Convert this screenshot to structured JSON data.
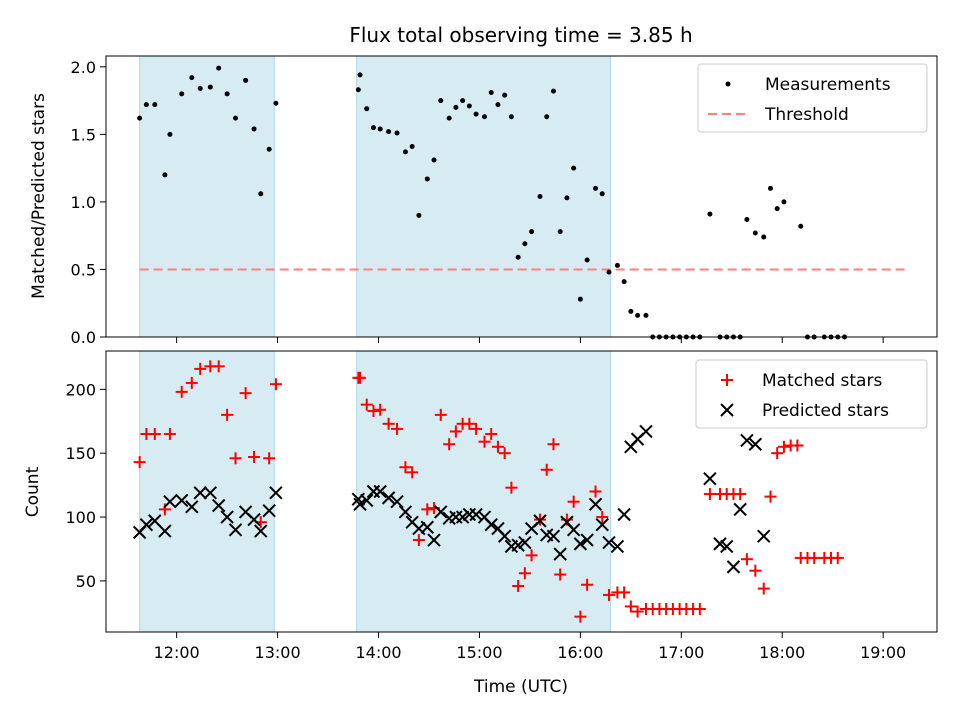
{
  "title": "Flux total observing time = 3.85 h",
  "xlabel": "Time (UTC)",
  "x_ticks": [
    "12:00",
    "13:00",
    "14:00",
    "15:00",
    "16:00",
    "17:00",
    "18:00",
    "19:00"
  ],
  "colors": {
    "measure": "#000000",
    "threshold": "#ff7f7f",
    "matched": "#ff0000",
    "predicted": "#000000",
    "span": "#add8e6"
  },
  "chart_data": [
    {
      "type": "scatter",
      "ylabel": "Matched/Predicted stars",
      "xlim": [
        "11:18",
        "19:32"
      ],
      "ylim": [
        0,
        2.08
      ],
      "y_ticks": [
        "0.0",
        "0.5",
        "1.0",
        "1.5",
        "2.0"
      ],
      "legend": {
        "position": "top-right",
        "entries": [
          "Measurements",
          "Threshold"
        ]
      },
      "shaded_intervals": [
        [
          "11:38",
          "12:58"
        ],
        [
          "13:47",
          "16:18"
        ]
      ],
      "threshold": {
        "name": "Threshold",
        "y": 0.5,
        "x_range": [
          "11:38",
          "19:13"
        ]
      },
      "series": [
        {
          "name": "Measurements",
          "marker": "dot",
          "points": [
            [
              "11:38",
              1.62
            ],
            [
              "11:42",
              1.72
            ],
            [
              "11:47",
              1.72
            ],
            [
              "11:53",
              1.2
            ],
            [
              "11:56",
              1.5
            ],
            [
              "12:03",
              1.8
            ],
            [
              "12:09",
              1.92
            ],
            [
              "12:14",
              1.84
            ],
            [
              "12:20",
              1.85
            ],
            [
              "12:25",
              1.99
            ],
            [
              "12:30",
              1.8
            ],
            [
              "12:35",
              1.62
            ],
            [
              "12:41",
              1.9
            ],
            [
              "12:46",
              1.54
            ],
            [
              "12:50",
              1.06
            ],
            [
              "12:55",
              1.39
            ],
            [
              "12:59",
              1.73
            ],
            [
              "13:48",
              1.83
            ],
            [
              "13:49",
              1.94
            ],
            [
              "13:53",
              1.69
            ],
            [
              "13:57",
              1.55
            ],
            [
              "14:01",
              1.54
            ],
            [
              "14:06",
              1.52
            ],
            [
              "14:11",
              1.51
            ],
            [
              "14:16",
              1.37
            ],
            [
              "14:20",
              1.41
            ],
            [
              "14:24",
              0.9
            ],
            [
              "14:29",
              1.17
            ],
            [
              "14:33",
              1.31
            ],
            [
              "14:37",
              1.75
            ],
            [
              "14:42",
              1.62
            ],
            [
              "14:46",
              1.7
            ],
            [
              "14:50",
              1.75
            ],
            [
              "14:54",
              1.71
            ],
            [
              "14:58",
              1.65
            ],
            [
              "15:03",
              1.63
            ],
            [
              "15:07",
              1.81
            ],
            [
              "15:11",
              1.72
            ],
            [
              "15:15",
              1.79
            ],
            [
              "15:19",
              1.63
            ],
            [
              "15:23",
              0.59
            ],
            [
              "15:27",
              0.69
            ],
            [
              "15:31",
              0.78
            ],
            [
              "15:36",
              1.04
            ],
            [
              "15:40",
              1.63
            ],
            [
              "15:44",
              1.82
            ],
            [
              "15:48",
              0.78
            ],
            [
              "15:52",
              1.03
            ],
            [
              "15:56",
              1.25
            ],
            [
              "16:00",
              0.28
            ],
            [
              "16:04",
              0.57
            ],
            [
              "16:09",
              1.1
            ],
            [
              "16:13",
              1.06
            ],
            [
              "16:17",
              0.48
            ],
            [
              "16:22",
              0.53
            ],
            [
              "16:26",
              0.41
            ],
            [
              "16:30",
              0.19
            ],
            [
              "16:34",
              0.16
            ],
            [
              "16:39",
              0.16
            ],
            [
              "16:43",
              0.0
            ],
            [
              "16:47",
              0.0
            ],
            [
              "16:51",
              0.0
            ],
            [
              "16:55",
              0.0
            ],
            [
              "16:59",
              0.0
            ],
            [
              "17:03",
              0.0
            ],
            [
              "17:07",
              0.0
            ],
            [
              "17:11",
              0.0
            ],
            [
              "17:17",
              0.91
            ],
            [
              "17:23",
              0.0
            ],
            [
              "17:27",
              0.0
            ],
            [
              "17:31",
              0.0
            ],
            [
              "17:35",
              0.0
            ],
            [
              "17:39",
              0.87
            ],
            [
              "17:44",
              0.77
            ],
            [
              "17:49",
              0.74
            ],
            [
              "17:53",
              1.1
            ],
            [
              "17:57",
              0.95
            ],
            [
              "18:01",
              1.0
            ],
            [
              "18:11",
              0.82
            ],
            [
              "18:15",
              0.0
            ],
            [
              "18:19",
              0.0
            ],
            [
              "18:25",
              0.0
            ],
            [
              "18:29",
              0.0
            ],
            [
              "18:33",
              0.0
            ],
            [
              "18:37",
              0.0
            ]
          ]
        }
      ]
    },
    {
      "type": "scatter",
      "ylabel": "Count",
      "xlim": [
        "11:18",
        "19:32"
      ],
      "ylim": [
        10,
        230
      ],
      "y_ticks": [
        "50",
        "100",
        "150",
        "200"
      ],
      "legend": {
        "position": "top-right",
        "entries": [
          "Matched stars",
          "Predicted stars"
        ]
      },
      "shaded_intervals": [
        [
          "11:38",
          "12:58"
        ],
        [
          "13:47",
          "16:18"
        ]
      ],
      "series": [
        {
          "name": "Matched stars",
          "marker": "plus",
          "points": [
            [
              "11:38",
              143
            ],
            [
              "11:42",
              165
            ],
            [
              "11:47",
              165
            ],
            [
              "11:53",
              106
            ],
            [
              "11:56",
              165
            ],
            [
              "12:03",
              198
            ],
            [
              "12:09",
              205
            ],
            [
              "12:14",
              216
            ],
            [
              "12:20",
              218
            ],
            [
              "12:25",
              218
            ],
            [
              "12:30",
              180
            ],
            [
              "12:35",
              146
            ],
            [
              "12:41",
              197
            ],
            [
              "12:46",
              147
            ],
            [
              "12:50",
              96
            ],
            [
              "12:55",
              146
            ],
            [
              "12:59",
              204
            ],
            [
              "13:48",
              209
            ],
            [
              "13:49",
              209
            ],
            [
              "13:53",
              188
            ],
            [
              "13:57",
              183
            ],
            [
              "14:01",
              184
            ],
            [
              "14:06",
              173
            ],
            [
              "14:11",
              169
            ],
            [
              "14:16",
              139
            ],
            [
              "14:20",
              135
            ],
            [
              "14:24",
              82
            ],
            [
              "14:29",
              106
            ],
            [
              "14:33",
              107
            ],
            [
              "14:37",
              180
            ],
            [
              "14:42",
              157
            ],
            [
              "14:46",
              167
            ],
            [
              "14:50",
              173
            ],
            [
              "14:54",
              173
            ],
            [
              "14:58",
              169
            ],
            [
              "15:03",
              159
            ],
            [
              "15:07",
              165
            ],
            [
              "15:11",
              155
            ],
            [
              "15:15",
              150
            ],
            [
              "15:19",
              123
            ],
            [
              "15:23",
              46
            ],
            [
              "15:27",
              56
            ],
            [
              "15:31",
              70
            ],
            [
              "15:36",
              98
            ],
            [
              "15:40",
              137
            ],
            [
              "15:44",
              157
            ],
            [
              "15:48",
              55
            ],
            [
              "15:52",
              98
            ],
            [
              "15:56",
              112
            ],
            [
              "16:00",
              22
            ],
            [
              "16:04",
              47
            ],
            [
              "16:09",
              120
            ],
            [
              "16:13",
              100
            ],
            [
              "16:17",
              39
            ],
            [
              "16:22",
              41
            ],
            [
              "16:26",
              41
            ],
            [
              "16:30",
              30
            ],
            [
              "16:34",
              26
            ],
            [
              "16:39",
              28
            ],
            [
              "16:43",
              28
            ],
            [
              "16:47",
              28
            ],
            [
              "16:51",
              28
            ],
            [
              "16:55",
              28
            ],
            [
              "16:59",
              28
            ],
            [
              "17:03",
              28
            ],
            [
              "17:07",
              28
            ],
            [
              "17:11",
              28
            ],
            [
              "17:17",
              118
            ],
            [
              "17:23",
              118
            ],
            [
              "17:27",
              118
            ],
            [
              "17:31",
              118
            ],
            [
              "17:35",
              118
            ],
            [
              "17:39",
              67
            ],
            [
              "17:44",
              58
            ],
            [
              "17:49",
              44
            ],
            [
              "17:53",
              116
            ],
            [
              "17:57",
              150
            ],
            [
              "18:01",
              155
            ],
            [
              "18:05",
              156
            ],
            [
              "18:09",
              156
            ],
            [
              "18:11",
              68
            ],
            [
              "18:15",
              68
            ],
            [
              "18:19",
              68
            ],
            [
              "18:25",
              68
            ],
            [
              "18:29",
              68
            ],
            [
              "18:33",
              68
            ]
          ]
        },
        {
          "name": "Predicted stars",
          "marker": "x",
          "points": [
            [
              "11:38",
              88
            ],
            [
              "11:42",
              94
            ],
            [
              "11:47",
              97
            ],
            [
              "11:53",
              89
            ],
            [
              "11:56",
              112
            ],
            [
              "12:03",
              113
            ],
            [
              "12:09",
              108
            ],
            [
              "12:14",
              119
            ],
            [
              "12:20",
              119
            ],
            [
              "12:25",
              109
            ],
            [
              "12:30",
              100
            ],
            [
              "12:35",
              90
            ],
            [
              "12:41",
              104
            ],
            [
              "12:46",
              98
            ],
            [
              "12:50",
              89
            ],
            [
              "12:55",
              105
            ],
            [
              "12:59",
              119
            ],
            [
              "13:48",
              114
            ],
            [
              "13:49",
              110
            ],
            [
              "13:53",
              113
            ],
            [
              "13:57",
              120
            ],
            [
              "14:01",
              120
            ],
            [
              "14:06",
              115
            ],
            [
              "14:11",
              112
            ],
            [
              "14:16",
              104
            ],
            [
              "14:20",
              96
            ],
            [
              "14:24",
              91
            ],
            [
              "14:29",
              92
            ],
            [
              "14:33",
              82
            ],
            [
              "14:37",
              104
            ],
            [
              "14:42",
              99
            ],
            [
              "14:46",
              100
            ],
            [
              "14:50",
              100
            ],
            [
              "14:54",
              102
            ],
            [
              "14:58",
              102
            ],
            [
              "15:03",
              100
            ],
            [
              "15:07",
              94
            ],
            [
              "15:11",
              91
            ],
            [
              "15:15",
              85
            ],
            [
              "15:19",
              77
            ],
            [
              "15:23",
              78
            ],
            [
              "15:27",
              80
            ],
            [
              "15:31",
              91
            ],
            [
              "15:36",
              97
            ],
            [
              "15:40",
              86
            ],
            [
              "15:44",
              85
            ],
            [
              "15:48",
              71
            ],
            [
              "15:52",
              96
            ],
            [
              "15:56",
              90
            ],
            [
              "16:00",
              79
            ],
            [
              "16:04",
              82
            ],
            [
              "16:09",
              110
            ],
            [
              "16:13",
              94
            ],
            [
              "16:17",
              80
            ],
            [
              "16:22",
              77
            ],
            [
              "16:26",
              102
            ],
            [
              "16:30",
              155
            ],
            [
              "16:34",
              161
            ],
            [
              "16:39",
              167
            ],
            [
              "17:17",
              130
            ],
            [
              "17:23",
              79
            ],
            [
              "17:27",
              77
            ],
            [
              "17:31",
              61
            ],
            [
              "17:35",
              106
            ],
            [
              "17:39",
              160
            ],
            [
              "17:44",
              157
            ],
            [
              "17:49",
              85
            ]
          ]
        }
      ]
    }
  ]
}
